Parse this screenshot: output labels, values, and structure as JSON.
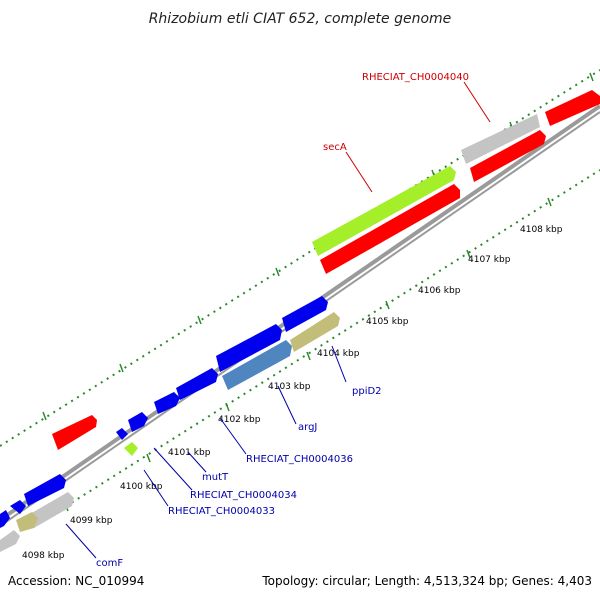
{
  "title": "Rhizobium etli CIAT 652, complete genome",
  "footer": {
    "accession": "Accession: NC_010994",
    "summary": "Topology: circular; Length: 4,513,324 bp; Genes: 4,403"
  },
  "colors": {
    "red": "#ff0000",
    "blue": "#0000ee",
    "lime": "#a4ef2a",
    "gray": "#c4c4c4",
    "khaki": "#c3bd7a",
    "steel": "#4f86bf",
    "green_tick": "#2a8a2a",
    "label_red": "#cc0000",
    "label_blue": "#0000aa"
  },
  "scale_labels": [
    "4098 kbp",
    "4099 kbp",
    "4100 kbp",
    "4101 kbp",
    "4102 kbp",
    "4103 kbp",
    "4104 kbp",
    "4105 kbp",
    "4106 kbp",
    "4107 kbp",
    "4108 kbp"
  ],
  "gene_labels": [
    {
      "text": "RHECIAT_CH0004040",
      "color": "red"
    },
    {
      "text": "secA",
      "color": "red"
    },
    {
      "text": "ppiD2",
      "color": "blue"
    },
    {
      "text": "argJ",
      "color": "blue"
    },
    {
      "text": "RHECIAT_CH0004036",
      "color": "blue"
    },
    {
      "text": "mutT",
      "color": "blue"
    },
    {
      "text": "RHECIAT_CH0004034",
      "color": "blue"
    },
    {
      "text": "RHECIAT_CH0004033",
      "color": "blue"
    },
    {
      "text": "comF",
      "color": "blue"
    }
  ]
}
